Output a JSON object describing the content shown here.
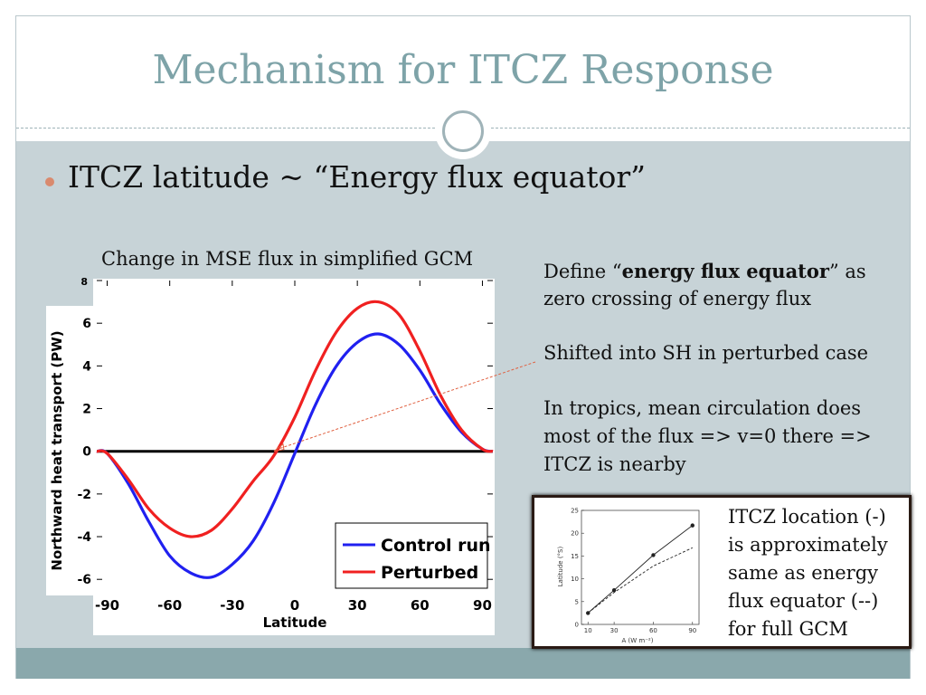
{
  "slide": {
    "title": "Mechanism for ITCZ Response",
    "bullet": "ITCZ latitude ~ “Energy flux equator”",
    "chart_caption": "Change in MSE flux in simplified GCM",
    "define_prefix": "Define “",
    "define_bold": "energy flux equator",
    "define_suffix": "” as",
    "define_line2": "zero crossing of energy flux",
    "shifted": "Shifted into SH in perturbed case",
    "tropics_line1": "In tropics, mean circulation does",
    "tropics_line2": "most of the flux => v=0 there =>",
    "tropics_line3": "ITCZ is nearby",
    "inset_line1": "ITCZ location (-)",
    "inset_line2": "is approximately",
    "inset_line3": "same as energy",
    "inset_line4": "flux equator (--)",
    "inset_line5": "for full GCM"
  },
  "colors": {
    "title": "#7ea3a8",
    "content_bg": "#c7d3d7",
    "footer_bg": "#8aa8ac",
    "bullet": "#d98a6e",
    "control": "#2020f0",
    "perturbed": "#f02020",
    "arrow": "#e06040"
  },
  "chart_data": [
    {
      "type": "line",
      "title": "",
      "xlabel": "Latitude",
      "ylabel": "Northward heat transport (PW)",
      "xlim": [
        -95,
        95
      ],
      "ylim": [
        -6.5,
        8
      ],
      "xticks": [
        -90,
        -60,
        -30,
        0,
        30,
        60,
        90
      ],
      "yticks": [
        -6,
        -4,
        -2,
        0,
        2,
        4,
        6,
        8
      ],
      "grid": false,
      "legend_position": "bottom-right",
      "x": [
        -95,
        -90,
        -80,
        -70,
        -60,
        -50,
        -40,
        -30,
        -20,
        -10,
        0,
        10,
        20,
        30,
        40,
        50,
        60,
        70,
        80,
        90,
        95
      ],
      "series": [
        {
          "name": "Control run",
          "color": "#2020f0",
          "values": [
            0,
            -0.1,
            -1.5,
            -3.3,
            -4.9,
            -5.7,
            -5.9,
            -5.3,
            -4.2,
            -2.4,
            -0.1,
            2.2,
            4.0,
            5.1,
            5.5,
            5.0,
            3.8,
            2.2,
            0.9,
            0.1,
            0
          ]
        },
        {
          "name": "Perturbed",
          "color": "#f02020",
          "values": [
            0,
            -0.1,
            -1.3,
            -2.7,
            -3.6,
            -4.0,
            -3.7,
            -2.7,
            -1.4,
            -0.2,
            1.6,
            3.8,
            5.6,
            6.7,
            7.0,
            6.4,
            4.7,
            2.6,
            1.0,
            0.1,
            0
          ]
        }
      ],
      "annotation": {
        "type": "arrow",
        "points_to_latitude": -10
      }
    },
    {
      "type": "line",
      "title": "",
      "xlabel": "A (W m⁻²)",
      "ylabel": "Latitude (°S)",
      "xlim": [
        5,
        95
      ],
      "ylim": [
        0,
        25
      ],
      "xticks": [
        10,
        30,
        60,
        90
      ],
      "yticks": [
        0,
        5,
        10,
        15,
        20,
        25
      ],
      "series": [
        {
          "name": "ITCZ location",
          "style": "solid",
          "x": [
            10,
            30,
            60,
            90
          ],
          "values": [
            2.5,
            7.5,
            15.2,
            21.7
          ]
        },
        {
          "name": "energy flux equator",
          "style": "dashed",
          "x": [
            10,
            30,
            60,
            90
          ],
          "values": [
            2.5,
            7.0,
            12.8,
            16.8
          ]
        }
      ]
    }
  ]
}
